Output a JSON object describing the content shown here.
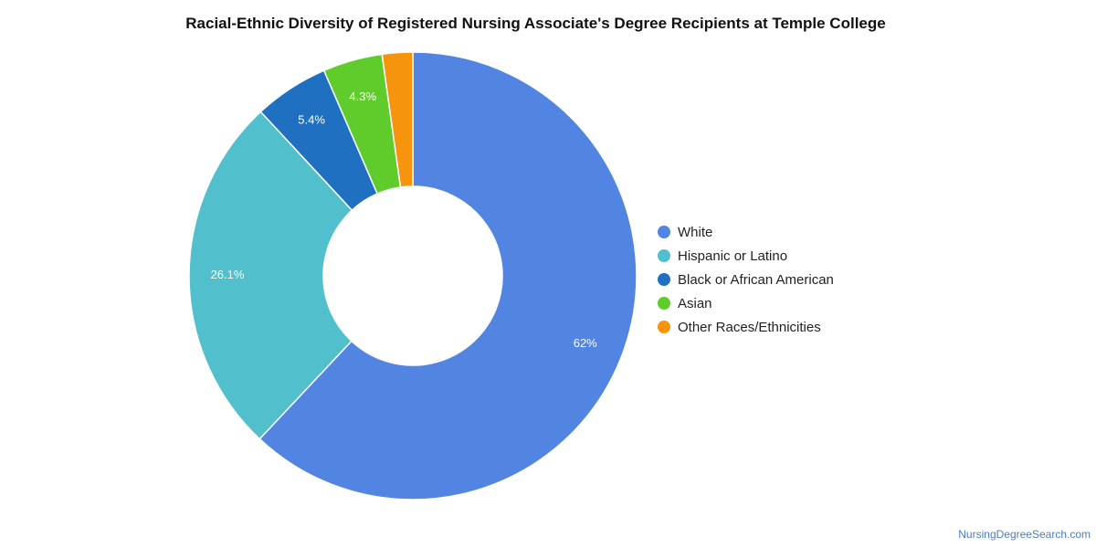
{
  "chart_data": {
    "type": "pie",
    "variant": "donut",
    "title": "Racial-Ethnic Diversity of Registered Nursing Associate's Degree Recipients at Temple College",
    "legend_position": "right",
    "slices": [
      {
        "label": "White",
        "value": 62.0,
        "display": "62%",
        "color": "#5285e2"
      },
      {
        "label": "Hispanic or Latino",
        "value": 26.1,
        "display": "26.1%",
        "color": "#51c0cc"
      },
      {
        "label": "Black or African American",
        "value": 5.4,
        "display": "5.4%",
        "color": "#1f70c1"
      },
      {
        "label": "Asian",
        "value": 4.3,
        "display": "4.3%",
        "color": "#5fcc2b"
      },
      {
        "label": "Other Races/Ethnicities",
        "value": 2.2,
        "display": "",
        "color": "#f6940e"
      }
    ]
  },
  "footer": {
    "credit": "NursingDegreeSearch.com"
  }
}
